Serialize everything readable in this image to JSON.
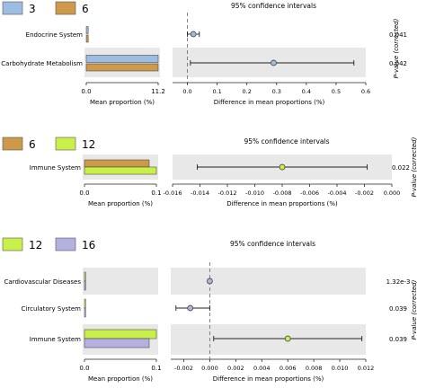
{
  "colors": {
    "group_3": "#9dbde0",
    "group_6": "#cc9a4a",
    "group_12": "#c9f04a",
    "group_16": "#b4b0e0",
    "band": "#e8e8e8",
    "axis": "#222222",
    "dash": "#666666"
  },
  "chart_data": [
    {
      "type": "bar",
      "legend": [
        {
          "name": "3",
          "color": "#9dbde0"
        },
        {
          "name": "6",
          "color": "#cc9a4a"
        }
      ],
      "categories": [
        "Endocrine System",
        "Carbohydrate Metabolism"
      ],
      "series": [
        {
          "name": "3",
          "values": [
            0.3,
            11.2
          ]
        },
        {
          "name": "6",
          "values": [
            0.3,
            11.2
          ]
        }
      ],
      "xlabel": "Mean proportion (%)",
      "xlim": [
        0,
        11.2
      ],
      "ticks": [
        "0.0",
        "11.2"
      ],
      "ci_panel": {
        "title": "95% confidence intervals",
        "xlabel": "Difference in mean proportions (%)",
        "xlim": [
          -0.05,
          0.6
        ],
        "ticks": [
          0.0,
          0.1,
          0.2,
          0.3,
          0.4,
          0.5,
          0.6
        ],
        "tick_labels": [
          "0.0",
          "0.1",
          "0.2",
          "0.3",
          "0.4",
          "0.5",
          "0.6"
        ],
        "points": [
          {
            "mean": 0.02,
            "low": 0.0,
            "high": 0.04,
            "color": "#9dbde0"
          },
          {
            "mean": 0.29,
            "low": 0.01,
            "high": 0.56,
            "color": "#9dbde0"
          }
        ]
      },
      "pvalues": [
        "0.041",
        "0.042"
      ],
      "pvalue_label": "P-value (corrected)"
    },
    {
      "type": "bar",
      "legend": [
        {
          "name": "6",
          "color": "#cc9a4a"
        },
        {
          "name": "12",
          "color": "#c9f04a"
        }
      ],
      "categories": [
        "Immune System"
      ],
      "series": [
        {
          "name": "6",
          "values": [
            0.09
          ]
        },
        {
          "name": "12",
          "values": [
            0.1
          ]
        }
      ],
      "xlabel": "Mean proportion (%)",
      "xlim": [
        0,
        0.1
      ],
      "ticks": [
        "0.0",
        "0.1"
      ],
      "ci_panel": {
        "title": "95% confidence intervals",
        "xlabel": "Difference in mean proportions (%)",
        "xlim": [
          -0.016,
          0.0
        ],
        "ticks": [
          -0.016,
          -0.014,
          -0.012,
          -0.01,
          -0.008,
          -0.006,
          -0.004,
          -0.002,
          0.0
        ],
        "tick_labels": [
          "-0.016",
          "-0.014",
          "-0.012",
          "-0.010",
          "-0.008",
          "-0.006",
          "-0.004",
          "-0.002",
          "0.000"
        ],
        "points": [
          {
            "mean": -0.008,
            "low": -0.0142,
            "high": -0.0018,
            "color": "#c9f04a"
          }
        ]
      },
      "pvalues": [
        "0.022"
      ],
      "pvalue_label": "P-value (corrected)"
    },
    {
      "type": "bar",
      "legend": [
        {
          "name": "12",
          "color": "#c9f04a"
        },
        {
          "name": "16",
          "color": "#b4b0e0"
        }
      ],
      "categories": [
        "Cardiovascular Diseases",
        "Circulatory System",
        "Immune System"
      ],
      "series": [
        {
          "name": "12",
          "values": [
            0.0,
            0.0,
            0.1
          ]
        },
        {
          "name": "16",
          "values": [
            0.0,
            0.0,
            0.09
          ]
        }
      ],
      "xlabel": "Mean proportion (%)",
      "xlim": [
        0,
        0.1
      ],
      "ticks": [
        "0.0",
        "0.1"
      ],
      "ci_panel": {
        "title": "95% confidence intervals",
        "xlabel": "Difference in mean proportions (%)",
        "xlim": [
          -0.003,
          0.012
        ],
        "ticks": [
          -0.002,
          0.0,
          0.002,
          0.004,
          0.006,
          0.008,
          0.01,
          0.012
        ],
        "tick_labels": [
          "-0.002",
          "0.000",
          "0.002",
          "0.004",
          "0.006",
          "0.008",
          "0.010",
          "0.012"
        ],
        "points": [
          {
            "mean": 0.0,
            "low": -0.0001,
            "high": 0.0001,
            "color": "#b4b0e0"
          },
          {
            "mean": -0.0015,
            "low": -0.0026,
            "high": 0.0,
            "color": "#b4b0e0"
          },
          {
            "mean": 0.006,
            "low": 0.0003,
            "high": 0.0117,
            "color": "#c9f04a"
          }
        ]
      },
      "pvalues": [
        "1.32e-3",
        "0.039",
        "0.039"
      ],
      "pvalue_label": "P-value (corrected)"
    }
  ]
}
